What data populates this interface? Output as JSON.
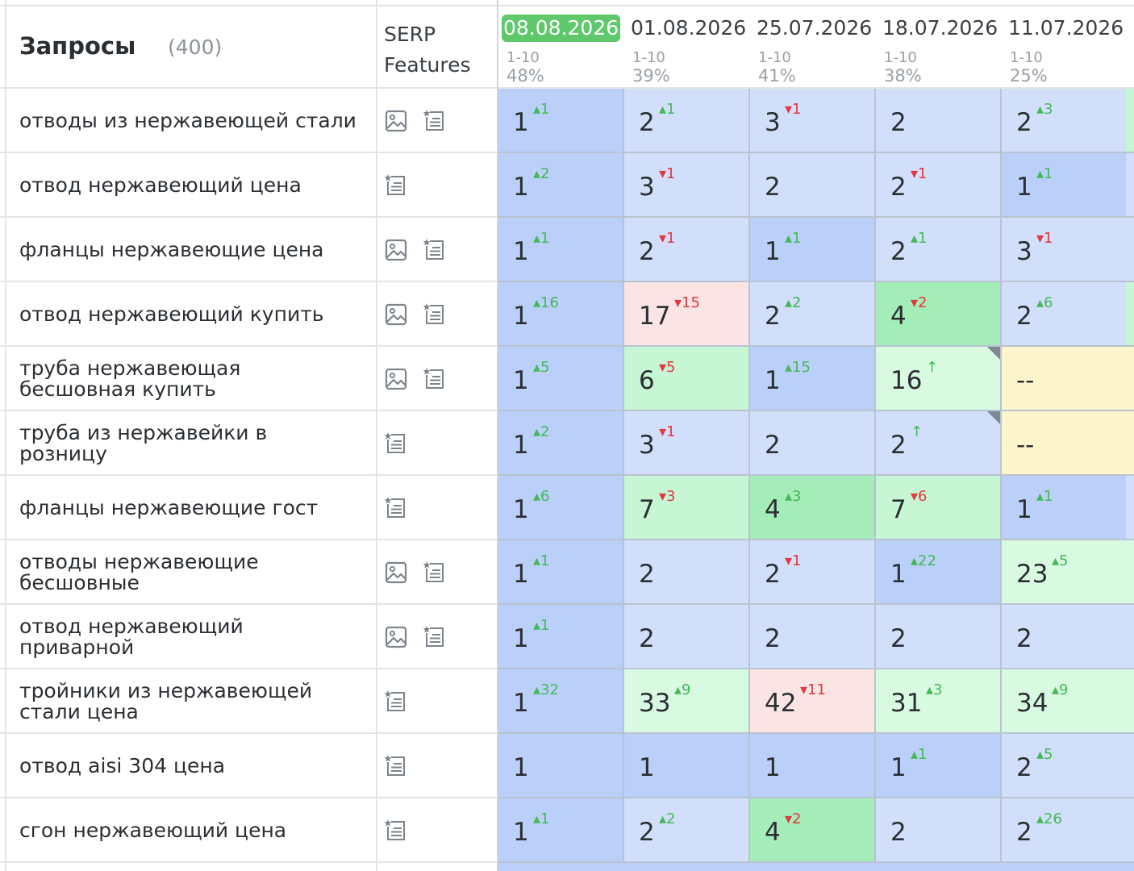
{
  "header": {
    "queries_label": "Запросы",
    "queries_count": "(400)",
    "serp_label_line1": "SERP",
    "serp_label_line2": "Features"
  },
  "dates": [
    {
      "date": "08.08.2026",
      "range": "1-10",
      "pct": "48%",
      "current": true
    },
    {
      "date": "01.08.2026",
      "range": "1-10",
      "pct": "39%",
      "current": false
    },
    {
      "date": "25.07.2026",
      "range": "1-10",
      "pct": "41%",
      "current": false
    },
    {
      "date": "18.07.2026",
      "range": "1-10",
      "pct": "38%",
      "current": false
    },
    {
      "date": "11.07.2026",
      "range": "1-10",
      "pct": "25%",
      "current": false
    }
  ],
  "rows": [
    {
      "query": "отводы из нержавеющей стали",
      "features": [
        "image-icon",
        "snippet-icon"
      ],
      "cells": [
        {
          "pos": "1",
          "chg": "1",
          "dir": "up",
          "bg": "b-dark"
        },
        {
          "pos": "2",
          "chg": "1",
          "dir": "up",
          "bg": "b-light"
        },
        {
          "pos": "3",
          "chg": "1",
          "dir": "down",
          "bg": "b-light"
        },
        {
          "pos": "2",
          "chg": "",
          "dir": "",
          "bg": "b-light"
        },
        {
          "pos": "2",
          "chg": "3",
          "dir": "up",
          "bg": "b-light"
        }
      ],
      "next_bg": "g-light"
    },
    {
      "query": "отвод нержавеющий цена",
      "features": [
        "snippet-icon"
      ],
      "cells": [
        {
          "pos": "1",
          "chg": "2",
          "dir": "up",
          "bg": "b-dark"
        },
        {
          "pos": "3",
          "chg": "1",
          "dir": "down",
          "bg": "b-light"
        },
        {
          "pos": "2",
          "chg": "",
          "dir": "",
          "bg": "b-light"
        },
        {
          "pos": "2",
          "chg": "1",
          "dir": "down",
          "bg": "b-light"
        },
        {
          "pos": "1",
          "chg": "1",
          "dir": "up",
          "bg": "b-dark"
        }
      ],
      "next_bg": "b-light"
    },
    {
      "query": "фланцы нержавеющие цена",
      "features": [
        "image-icon",
        "snippet-icon"
      ],
      "cells": [
        {
          "pos": "1",
          "chg": "1",
          "dir": "up",
          "bg": "b-dark"
        },
        {
          "pos": "2",
          "chg": "1",
          "dir": "down",
          "bg": "b-light"
        },
        {
          "pos": "1",
          "chg": "1",
          "dir": "up",
          "bg": "b-dark"
        },
        {
          "pos": "2",
          "chg": "1",
          "dir": "up",
          "bg": "b-light"
        },
        {
          "pos": "3",
          "chg": "1",
          "dir": "down",
          "bg": "b-light"
        }
      ],
      "next_bg": "b-light"
    },
    {
      "query": "отвод нержавеющий купить",
      "features": [
        "image-icon",
        "snippet-icon"
      ],
      "cells": [
        {
          "pos": "1",
          "chg": "16",
          "dir": "up",
          "bg": "b-dark"
        },
        {
          "pos": "17",
          "chg": "15",
          "dir": "down",
          "bg": "pink"
        },
        {
          "pos": "2",
          "chg": "2",
          "dir": "up",
          "bg": "b-light"
        },
        {
          "pos": "4",
          "chg": "2",
          "dir": "down",
          "bg": "g-mid"
        },
        {
          "pos": "2",
          "chg": "6",
          "dir": "up",
          "bg": "b-light"
        }
      ],
      "next_bg": "g-light"
    },
    {
      "query": "труба нержавеющая бесшовная купить",
      "features": [
        "image-icon",
        "snippet-icon"
      ],
      "cells": [
        {
          "pos": "1",
          "chg": "5",
          "dir": "up",
          "bg": "b-dark"
        },
        {
          "pos": "6",
          "chg": "5",
          "dir": "down",
          "bg": "g-light"
        },
        {
          "pos": "1",
          "chg": "15",
          "dir": "up",
          "bg": "b-dark"
        },
        {
          "pos": "16",
          "chg": "↑",
          "dir": "new",
          "bg": "g-pale",
          "corner": true
        },
        {
          "pos": "--",
          "chg": "",
          "dir": "",
          "bg": "yellow"
        }
      ],
      "next_bg": "yellow"
    },
    {
      "query": "труба из нержавейки в розницу",
      "features": [
        "snippet-icon"
      ],
      "cells": [
        {
          "pos": "1",
          "chg": "2",
          "dir": "up",
          "bg": "b-dark"
        },
        {
          "pos": "3",
          "chg": "1",
          "dir": "down",
          "bg": "b-light"
        },
        {
          "pos": "2",
          "chg": "",
          "dir": "",
          "bg": "b-light"
        },
        {
          "pos": "2",
          "chg": "↑",
          "dir": "new",
          "bg": "b-light",
          "corner": true
        },
        {
          "pos": "--",
          "chg": "",
          "dir": "",
          "bg": "yellow"
        }
      ],
      "next_bg": "yellow"
    },
    {
      "query": "фланцы нержавеющие гост",
      "features": [
        "snippet-icon"
      ],
      "cells": [
        {
          "pos": "1",
          "chg": "6",
          "dir": "up",
          "bg": "b-dark"
        },
        {
          "pos": "7",
          "chg": "3",
          "dir": "down",
          "bg": "g-light"
        },
        {
          "pos": "4",
          "chg": "3",
          "dir": "up",
          "bg": "g-mid"
        },
        {
          "pos": "7",
          "chg": "6",
          "dir": "down",
          "bg": "g-light"
        },
        {
          "pos": "1",
          "chg": "1",
          "dir": "up",
          "bg": "b-dark"
        }
      ],
      "next_bg": "b-light"
    },
    {
      "query": "отводы нержавеющие бесшовные",
      "features": [
        "image-icon",
        "snippet-icon"
      ],
      "cells": [
        {
          "pos": "1",
          "chg": "1",
          "dir": "up",
          "bg": "b-dark"
        },
        {
          "pos": "2",
          "chg": "",
          "dir": "",
          "bg": "b-light"
        },
        {
          "pos": "2",
          "chg": "1",
          "dir": "down",
          "bg": "b-light"
        },
        {
          "pos": "1",
          "chg": "22",
          "dir": "up",
          "bg": "b-dark"
        },
        {
          "pos": "23",
          "chg": "5",
          "dir": "up",
          "bg": "g-pale"
        }
      ],
      "next_bg": "g-pale"
    },
    {
      "query": "отвод нержавеющий приварной",
      "features": [
        "image-icon",
        "snippet-icon"
      ],
      "cells": [
        {
          "pos": "1",
          "chg": "1",
          "dir": "up",
          "bg": "b-dark"
        },
        {
          "pos": "2",
          "chg": "",
          "dir": "",
          "bg": "b-light"
        },
        {
          "pos": "2",
          "chg": "",
          "dir": "",
          "bg": "b-light"
        },
        {
          "pos": "2",
          "chg": "",
          "dir": "",
          "bg": "b-light"
        },
        {
          "pos": "2",
          "chg": "",
          "dir": "",
          "bg": "b-light"
        }
      ],
      "next_bg": "b-light"
    },
    {
      "query": "тройники из нержавеющей стали цена",
      "features": [
        "snippet-icon"
      ],
      "cells": [
        {
          "pos": "1",
          "chg": "32",
          "dir": "up",
          "bg": "b-dark"
        },
        {
          "pos": "33",
          "chg": "9",
          "dir": "up",
          "bg": "g-pale"
        },
        {
          "pos": "42",
          "chg": "11",
          "dir": "down",
          "bg": "pink"
        },
        {
          "pos": "31",
          "chg": "3",
          "dir": "up",
          "bg": "g-pale"
        },
        {
          "pos": "34",
          "chg": "9",
          "dir": "up",
          "bg": "g-pale"
        }
      ],
      "next_bg": "g-pale"
    },
    {
      "query": "отвод aisi 304 цена",
      "features": [
        "snippet-icon"
      ],
      "cells": [
        {
          "pos": "1",
          "chg": "",
          "dir": "",
          "bg": "b-dark"
        },
        {
          "pos": "1",
          "chg": "",
          "dir": "",
          "bg": "b-dark"
        },
        {
          "pos": "1",
          "chg": "",
          "dir": "",
          "bg": "b-dark"
        },
        {
          "pos": "1",
          "chg": "1",
          "dir": "up",
          "bg": "b-dark"
        },
        {
          "pos": "2",
          "chg": "5",
          "dir": "up",
          "bg": "b-light"
        }
      ],
      "next_bg": "b-light"
    },
    {
      "query": "сгон нержавеющий цена",
      "features": [
        "snippet-icon"
      ],
      "cells": [
        {
          "pos": "1",
          "chg": "1",
          "dir": "up",
          "bg": "b-dark"
        },
        {
          "pos": "2",
          "chg": "2",
          "dir": "up",
          "bg": "b-light"
        },
        {
          "pos": "4",
          "chg": "2",
          "dir": "down",
          "bg": "g-mid"
        },
        {
          "pos": "2",
          "chg": "",
          "dir": "",
          "bg": "b-light"
        },
        {
          "pos": "2",
          "chg": "26",
          "dir": "up",
          "bg": "b-light"
        }
      ],
      "next_bg": "b-light"
    }
  ]
}
